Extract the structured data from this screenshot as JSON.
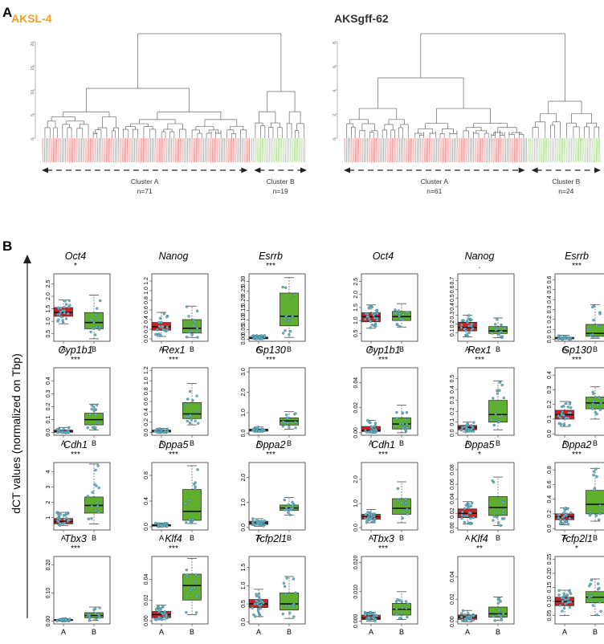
{
  "panels": {
    "a": "A",
    "b": "B"
  },
  "colors": {
    "cluster_a": "#cc2222",
    "cluster_b": "#5fae2e",
    "dendrogram": "#666666",
    "points": "#6fb6c8",
    "title_left": "#f0a020",
    "title_right": "#333333"
  },
  "y_axis_label": "dCT values (normalized on Tbp)",
  "chart_data": [
    {
      "type": "dendrogram",
      "title": "AKSL-4",
      "yticks": [
        0,
        5,
        10,
        15,
        20
      ],
      "clusters": [
        {
          "name": "Cluster A",
          "n_label": "n=71",
          "n": 71,
          "color": "red"
        },
        {
          "name": "Cluster B",
          "n_label": "n=19",
          "n": 19,
          "color": "green"
        }
      ]
    },
    {
      "type": "dendrogram",
      "title": "AKSgff-62",
      "yticks": [
        0,
        2,
        4,
        6,
        8
      ],
      "clusters": [
        {
          "name": "Cluster A",
          "n_label": "n=61",
          "n": 61,
          "color": "red"
        },
        {
          "name": "Cluster B",
          "n_label": "n=24",
          "n": 24,
          "color": "green"
        }
      ]
    },
    {
      "type": "boxplot",
      "line": "AKSL-4",
      "categories": [
        "A",
        "B"
      ],
      "genes": [
        {
          "gene": "Oct4",
          "sig": "*",
          "ticks": [
            "0.5",
            "1.0",
            "1.5",
            "2.0",
            "2.5"
          ],
          "ylim": [
            0.2,
            2.9
          ],
          "A": [
            0.9,
            1.2,
            1.35,
            1.55,
            1.85
          ],
          "B": [
            0.3,
            0.7,
            0.95,
            1.35,
            2.05
          ]
        },
        {
          "gene": "Nanog",
          "sig": "",
          "ticks": [
            "0.0",
            "0.2",
            "0.4",
            "0.6",
            "0.8",
            "1.0",
            "1.2"
          ],
          "ylim": [
            -0.05,
            1.35
          ],
          "A": [
            0.05,
            0.18,
            0.25,
            0.34,
            0.55
          ],
          "B": [
            0.03,
            0.12,
            0.22,
            0.4,
            0.68
          ]
        },
        {
          "gene": "Esrrb",
          "sig": "***",
          "ticks": [
            "0.00",
            "0.05",
            "0.10",
            "0.15",
            "0.20",
            "0.25",
            "0.30"
          ],
          "ylim": [
            -0.01,
            0.34
          ],
          "A": [
            0.0,
            0.003,
            0.006,
            0.012,
            0.02
          ],
          "B": [
            0.01,
            0.07,
            0.12,
            0.24,
            0.32
          ]
        },
        {
          "gene": "Cyp1b1",
          "sig": "***",
          "ticks": [
            "0.0",
            "0.1",
            "0.2",
            "0.3",
            "0.4"
          ],
          "ylim": [
            -0.02,
            0.5
          ],
          "A": [
            0.0,
            0.003,
            0.008,
            0.02,
            0.04
          ],
          "B": [
            0.02,
            0.06,
            0.1,
            0.15,
            0.22
          ]
        },
        {
          "gene": "Rex1",
          "sig": "***",
          "ticks": [
            "0.0",
            "0.2",
            "0.4",
            "0.6",
            "0.8",
            "1.0",
            "1.2"
          ],
          "ylim": [
            -0.05,
            1.25
          ],
          "A": [
            0.0,
            0.01,
            0.025,
            0.05,
            0.08
          ],
          "B": [
            0.15,
            0.27,
            0.36,
            0.58,
            0.95
          ]
        },
        {
          "gene": "Gp130",
          "sig": "***",
          "ticks": [
            "0.0",
            "1.0",
            "2.0",
            "3.0"
          ],
          "ylim": [
            -0.1,
            3.2
          ],
          "A": [
            0.05,
            0.1,
            0.15,
            0.2,
            0.3
          ],
          "B": [
            0.2,
            0.4,
            0.6,
            0.75,
            1.05
          ]
        },
        {
          "gene": "Cdh1",
          "sig": "***",
          "ticks": [
            "1",
            "2",
            "3",
            "4"
          ],
          "ylim": [
            0.2,
            4.6
          ],
          "A": [
            0.5,
            0.6,
            0.75,
            0.95,
            1.35
          ],
          "B": [
            0.6,
            1.3,
            1.8,
            2.35,
            4.5
          ]
        },
        {
          "gene": "Dppa5",
          "sig": "***",
          "ticks": [
            "0.0",
            "0.4",
            "0.8"
          ],
          "ylim": [
            -0.05,
            1.0
          ],
          "A": [
            0.0,
            0.01,
            0.02,
            0.035,
            0.06
          ],
          "B": [
            0.05,
            0.1,
            0.24,
            0.58,
            0.95
          ]
        },
        {
          "gene": "Dppa2",
          "sig": "***",
          "ticks": [
            "0.0",
            "1.0",
            "2.0"
          ],
          "ylim": [
            -0.1,
            2.6
          ],
          "A": [
            0.05,
            0.12,
            0.18,
            0.25,
            0.35
          ],
          "B": [
            0.5,
            0.68,
            0.78,
            0.9,
            1.2
          ]
        },
        {
          "gene": "Tbx3",
          "sig": "***",
          "ticks": [
            "0.00",
            "0.10",
            "0.20"
          ],
          "ylim": [
            -0.01,
            0.23
          ],
          "A": [
            0.0,
            0.002,
            0.004,
            0.006,
            0.009
          ],
          "B": [
            0.002,
            0.012,
            0.02,
            0.03,
            0.05
          ]
        },
        {
          "gene": "Klf4",
          "sig": "***",
          "ticks": [
            "0.00",
            "0.02",
            "0.04"
          ],
          "ylim": [
            -0.003,
            0.062
          ],
          "A": [
            0.001,
            0.003,
            0.006,
            0.009,
            0.015
          ],
          "B": [
            0.006,
            0.02,
            0.034,
            0.045,
            0.06
          ]
        },
        {
          "gene": "Tcfp2l1",
          "sig": "",
          "ticks": [
            "0.0",
            "0.5",
            "1.0",
            "1.5"
          ],
          "ylim": [
            -0.05,
            1.8
          ],
          "A": [
            0.15,
            0.4,
            0.5,
            0.62,
            0.9
          ],
          "B": [
            0.1,
            0.33,
            0.5,
            0.8,
            1.25
          ]
        }
      ]
    },
    {
      "type": "boxplot",
      "line": "AKSgff-62",
      "categories": [
        "A",
        "B"
      ],
      "genes": [
        {
          "gene": "Oct4",
          "sig": "",
          "ticks": [
            "0.5",
            "1.0",
            "1.5",
            "2.0",
            "2.5"
          ],
          "ylim": [
            0.2,
            2.8
          ],
          "A": [
            0.7,
            0.95,
            1.15,
            1.3,
            1.6
          ],
          "B": [
            0.75,
            1.0,
            1.15,
            1.35,
            1.65
          ]
        },
        {
          "gene": "Nanog",
          "sig": ".",
          "ticks": [
            "0.1",
            "0.2",
            "0.3",
            "0.4",
            "0.5",
            "0.6",
            "0.7"
          ],
          "ylim": [
            0.0,
            0.78
          ],
          "A": [
            0.05,
            0.12,
            0.16,
            0.22,
            0.3
          ],
          "B": [
            0.04,
            0.09,
            0.12,
            0.17,
            0.27
          ]
        },
        {
          "gene": "Esrrb",
          "sig": "***",
          "ticks": [
            "0.0",
            "0.1",
            "0.2",
            "0.3",
            "0.4",
            "0.5",
            "0.6"
          ],
          "ylim": [
            -0.02,
            0.66
          ],
          "A": [
            0.0,
            0.005,
            0.01,
            0.02,
            0.04
          ],
          "B": [
            0.01,
            0.03,
            0.06,
            0.15,
            0.35
          ]
        },
        {
          "gene": "Cyp1b1",
          "sig": "***",
          "ticks": [
            "0.00",
            "0.02",
            "0.04"
          ],
          "ylim": [
            -0.002,
            0.052
          ],
          "A": [
            0.0,
            0.001,
            0.002,
            0.005,
            0.01
          ],
          "B": [
            0.0,
            0.003,
            0.007,
            0.012,
            0.022
          ]
        },
        {
          "gene": "Rex1",
          "sig": "***",
          "ticks": [
            "0.0",
            "0.1",
            "0.2",
            "0.3",
            "0.4",
            "0.5"
          ],
          "ylim": [
            -0.02,
            0.6
          ],
          "A": [
            0.01,
            0.03,
            0.05,
            0.07,
            0.1
          ],
          "B": [
            0.03,
            0.1,
            0.17,
            0.3,
            0.48
          ]
        },
        {
          "gene": "Gp130",
          "sig": "***",
          "ticks": [
            "0.0",
            "0.1",
            "0.2",
            "0.3",
            "0.4"
          ],
          "ylim": [
            -0.01,
            0.45
          ],
          "A": [
            0.05,
            0.1,
            0.13,
            0.16,
            0.22
          ],
          "B": [
            0.1,
            0.17,
            0.21,
            0.25,
            0.32
          ]
        },
        {
          "gene": "Cdh1",
          "sig": "***",
          "ticks": [
            "0.0",
            "1.0",
            "2.0"
          ],
          "ylim": [
            -0.1,
            2.7
          ],
          "A": [
            0.2,
            0.35,
            0.45,
            0.55,
            0.75
          ],
          "B": [
            0.2,
            0.55,
            0.8,
            1.2,
            1.9
          ]
        },
        {
          "gene": "Dppa5",
          "sig": "*",
          "ticks": [
            "0.00",
            "0.02",
            "0.04",
            "0.06",
            "0.08"
          ],
          "ylim": [
            -0.003,
            0.09
          ],
          "A": [
            0.005,
            0.014,
            0.02,
            0.026,
            0.036
          ],
          "B": [
            0.003,
            0.017,
            0.028,
            0.043,
            0.07
          ]
        },
        {
          "gene": "Dppa2",
          "sig": "***",
          "ticks": [
            "0.0",
            "0.2",
            "0.4",
            "0.6",
            "0.8"
          ],
          "ylim": [
            -0.02,
            0.9
          ],
          "A": [
            0.05,
            0.12,
            0.16,
            0.2,
            0.28
          ],
          "B": [
            0.1,
            0.2,
            0.33,
            0.52,
            0.82
          ]
        },
        {
          "gene": "Tbx3",
          "sig": "***",
          "ticks": [
            "0.000",
            "0.010",
            "0.020"
          ],
          "ylim": [
            -0.001,
            0.022
          ],
          "A": [
            0.0,
            0.0005,
            0.001,
            0.002,
            0.003
          ],
          "B": [
            0.0005,
            0.002,
            0.004,
            0.006,
            0.01
          ]
        },
        {
          "gene": "Klf4",
          "sig": "**",
          "ticks": [
            "0.00",
            "0.02",
            "0.04"
          ],
          "ylim": [
            -0.002,
            0.058
          ],
          "A": [
            0.0,
            0.002,
            0.004,
            0.006,
            0.01
          ],
          "B": [
            0.001,
            0.004,
            0.007,
            0.013,
            0.022
          ]
        },
        {
          "gene": "Tcfp2l1",
          "sig": "*",
          "ticks": [
            "0.05",
            "0.10",
            "0.15",
            "0.20",
            "0.25"
          ],
          "ylim": [
            0.02,
            0.26
          ],
          "A": [
            0.05,
            0.085,
            0.1,
            0.115,
            0.14
          ],
          "B": [
            0.05,
            0.095,
            0.115,
            0.135,
            0.18
          ]
        }
      ]
    }
  ]
}
